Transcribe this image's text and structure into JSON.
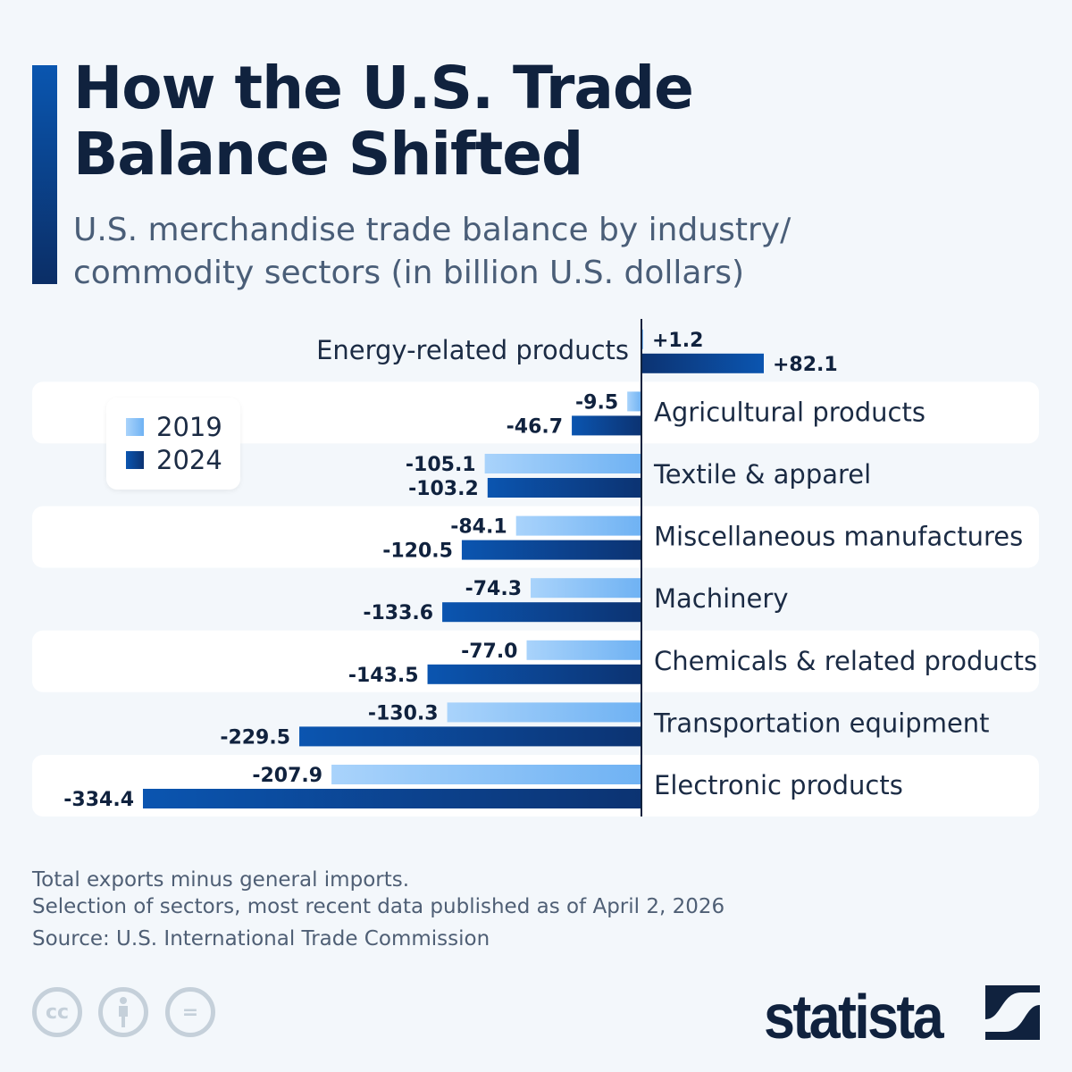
{
  "title": "How the U.S. Trade Balance Shifted",
  "subtitle": "U.S. merchandise trade balance by industry/ commodity sectors (in billion U.S. dollars)",
  "colors": {
    "series_2019": "#8cc4f8",
    "series_2024": "#0a4a9c",
    "title": "#10223e",
    "row_bg": "#ffffff"
  },
  "chart_data": {
    "type": "bar",
    "orientation": "horizontal",
    "title": "How the U.S. Trade Balance Shifted",
    "unit": "billion U.S. dollars",
    "categories": [
      "Energy-related products",
      "Agricultural products",
      "Textile & apparel",
      "Miscellaneous manufactures",
      "Machinery",
      "Chemicals & related products",
      "Transportation equipment",
      "Electronic products"
    ],
    "series": [
      {
        "name": "2019",
        "values": [
          1.2,
          -9.5,
          -105.1,
          -84.1,
          -74.3,
          -77.0,
          -130.3,
          -207.9
        ],
        "labels": [
          "+1.2",
          "-9.5",
          "-105.1",
          "-84.1",
          "-74.3",
          "-77.0",
          "-130.3",
          "-207.9"
        ]
      },
      {
        "name": "2024",
        "values": [
          82.1,
          -46.7,
          -103.2,
          -120.5,
          -133.6,
          -143.5,
          -229.5,
          -334.4
        ],
        "labels": [
          "+82.1",
          "-46.7",
          "-103.2",
          "-120.5",
          "-133.6",
          "-143.5",
          "-229.5",
          "-334.4"
        ]
      }
    ],
    "xlim": [
      -334.4,
      82.1
    ],
    "grid": false,
    "legend_position": "top-left"
  },
  "legend": [
    {
      "label": "2019"
    },
    {
      "label": "2024"
    }
  ],
  "footer": {
    "note1": "Total exports minus general imports.",
    "note2": "Selection of sectors, most recent data published as of April 2, 2026",
    "source": "Source: U.S. International Trade Commission"
  },
  "license_icons": [
    "cc-icon",
    "attribution-icon",
    "no-derivatives-icon"
  ],
  "license_text": {
    "cc": "cc",
    "eq": "="
  },
  "logo": "statista"
}
